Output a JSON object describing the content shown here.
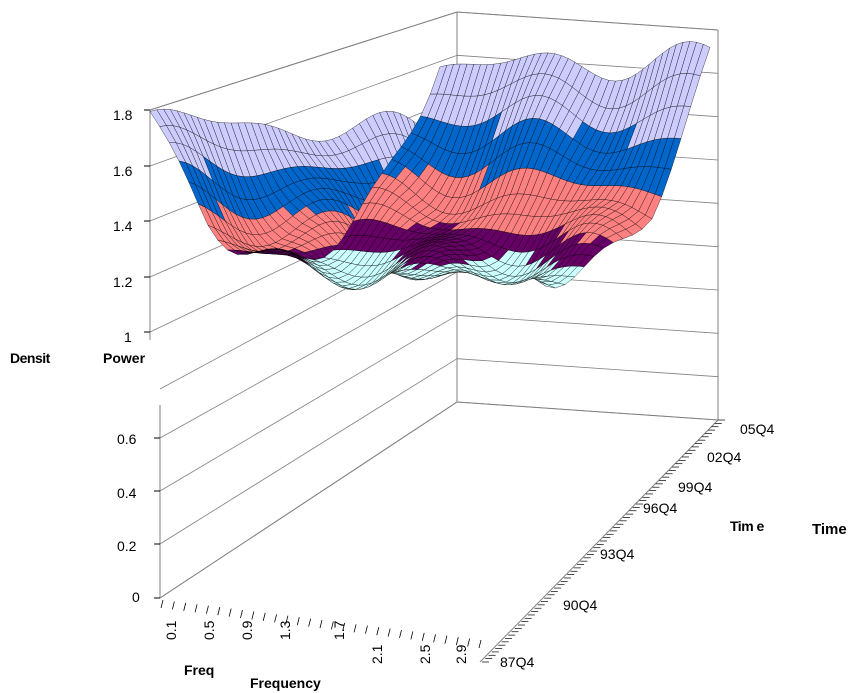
{
  "chart_data": {
    "type": "surface",
    "axis_labels": {
      "z_upper": "Power",
      "z_upper_clipped": "Densit",
      "x": "Frequency",
      "x_clipped": "Freq",
      "y": "Time",
      "y_clipped": "Tim e"
    },
    "z_ticks_upper": [
      "1.8",
      "1.6",
      "1.4",
      "1.2",
      "1"
    ],
    "z_ticks_lower": [
      "0.6",
      "0.4",
      "0.2",
      "0"
    ],
    "z_range_upper": [
      1,
      1.8
    ],
    "z_range_lower": [
      0,
      0.7
    ],
    "x_ticks": [
      "0.1",
      "0.5",
      "0.9",
      "1.3",
      "1.7",
      "2.1",
      "2.5",
      "2.9"
    ],
    "x_range": [
      0.1,
      2.9
    ],
    "y_ticks": [
      "87Q4",
      "90Q4",
      "93Q4",
      "96Q4",
      "99Q4",
      "02Q4",
      "05Q4"
    ],
    "colors": {
      "band_1": "#ccffff",
      "band_2": "#660066",
      "band_3": "#ff8080",
      "band_4": "#0066cc",
      "band_5": "#ccccff",
      "grid": "#808080",
      "mesh": "#000000"
    }
  }
}
